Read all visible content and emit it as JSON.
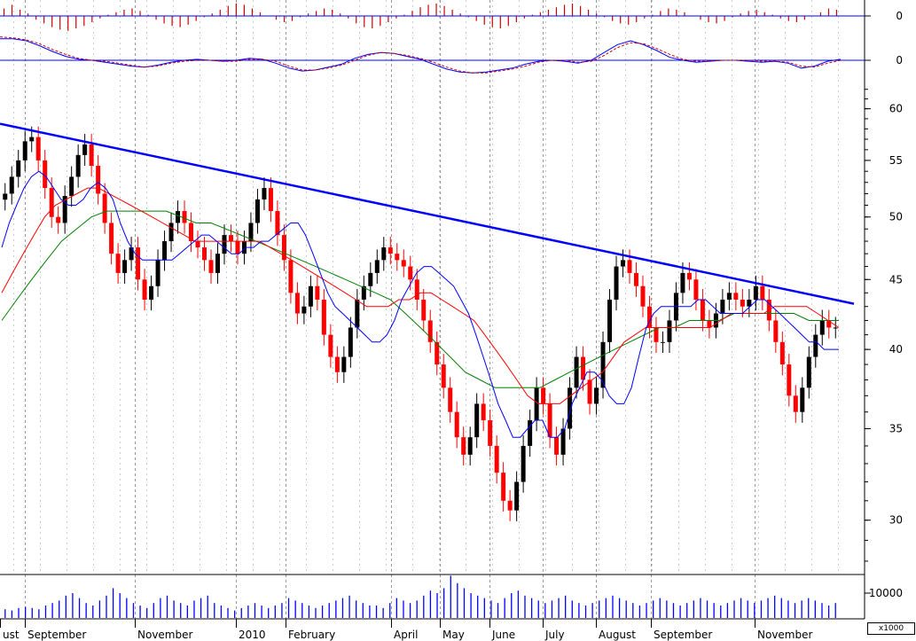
{
  "chart_data": [
    {
      "type": "bar",
      "panel": "oscillator-histogram",
      "y_tick_labels": [
        "0"
      ],
      "zero_line_color": "#0000ff",
      "bar_colors": {
        "positive": "#cc0000",
        "negative": "#cc0000"
      },
      "values": [
        0.6,
        0.9,
        0.5,
        0.2,
        -0.3,
        -0.6,
        -0.9,
        -1.1,
        -1.2,
        -1.0,
        -0.8,
        -0.5,
        -0.2,
        0.1,
        0.3,
        0.5,
        0.6,
        0.4,
        0.1,
        -0.3,
        -0.6,
        -0.8,
        -0.9,
        -0.7,
        -0.4,
        -0.1,
        0.2,
        0.5,
        0.8,
        1.0,
        0.9,
        0.6,
        0.3,
        0.0,
        -0.3,
        -0.5,
        -0.4,
        -0.1,
        0.2,
        0.4,
        0.6,
        0.5,
        0.2,
        -0.2,
        -0.6,
        -0.9,
        -1.0,
        -0.8,
        -0.5,
        -0.2,
        0.1,
        0.4,
        0.7,
        0.9,
        1.0,
        0.8,
        0.5,
        0.2,
        -0.1,
        -0.4,
        -0.7,
        -0.9,
        -1.0,
        -0.8,
        -0.5,
        -0.2,
        0.1,
        0.3,
        0.5,
        0.7,
        0.9,
        1.0,
        0.8,
        0.5,
        0.2,
        -0.1,
        -0.4,
        -0.6,
        -0.7,
        -0.5,
        -0.2,
        0.1,
        0.4,
        0.6,
        0.5,
        0.3,
        0.0,
        -0.3,
        -0.5,
        -0.6,
        -0.4,
        -0.1,
        0.2,
        0.4,
        0.5,
        0.3,
        0.1,
        -0.2,
        -0.4,
        -0.5,
        -0.3,
        0.0,
        0.3,
        0.6,
        0.5
      ]
    },
    {
      "type": "line",
      "panel": "oscillator",
      "y_tick_labels": [
        "0"
      ],
      "series": [
        {
          "color": "#0000ff",
          "style": "solid",
          "values": [
            2.2,
            2.2,
            2.0,
            1.5,
            0.9,
            0.4,
            0.1,
            0.0,
            -0.2,
            -0.4,
            -0.6,
            -0.7,
            -0.5,
            -0.2,
            0.0,
            0.1,
            0.0,
            -0.1,
            0.0,
            0.2,
            0.1,
            -0.3,
            -0.8,
            -1.1,
            -1.0,
            -0.7,
            -0.4,
            0.2,
            0.6,
            0.8,
            0.7,
            0.4,
            0.1,
            -0.4,
            -0.9,
            -1.2,
            -1.3,
            -1.2,
            -1.0,
            -0.8,
            -0.4,
            -0.1,
            0.0,
            -0.1,
            -0.3,
            0.0,
            0.8,
            1.6,
            2.0,
            1.6,
            1.0,
            0.3,
            0.0,
            -0.2,
            -0.1,
            0.0,
            0.0,
            -0.1,
            -0.2,
            -0.1,
            -0.3,
            -0.8,
            -0.6,
            -0.1,
            0.1
          ]
        },
        {
          "color": "#cc0000",
          "style": "dashed",
          "values": [
            2.4,
            2.3,
            2.1,
            1.7,
            1.1,
            0.6,
            0.2,
            0.0,
            -0.1,
            -0.3,
            -0.5,
            -0.7,
            -0.6,
            -0.3,
            -0.1,
            0.0,
            0.0,
            -0.1,
            -0.1,
            0.1,
            0.1,
            -0.1,
            -0.6,
            -1.0,
            -1.0,
            -0.8,
            -0.5,
            0.0,
            0.5,
            0.8,
            0.7,
            0.5,
            0.2,
            -0.2,
            -0.7,
            -1.1,
            -1.3,
            -1.3,
            -1.1,
            -0.9,
            -0.6,
            -0.2,
            0.0,
            0.0,
            -0.2,
            -0.1,
            0.5,
            1.3,
            1.8,
            1.7,
            1.2,
            0.6,
            0.1,
            -0.1,
            -0.1,
            0.0,
            0.0,
            0.0,
            -0.1,
            -0.1,
            -0.2,
            -0.6,
            -0.7,
            -0.3,
            0.0
          ]
        }
      ]
    },
    {
      "type": "candlestick",
      "panel": "price",
      "scale": "log",
      "y_tick_labels": [
        "30",
        "35",
        "40",
        "45",
        "50",
        "55",
        "60"
      ],
      "ylim": [
        27.5,
        63
      ],
      "candle_colors": {
        "up": "#000000",
        "down": "#ff0000"
      },
      "close": [
        52.0,
        53.5,
        55.0,
        56.8,
        57.2,
        55.0,
        52.5,
        50.0,
        49.5,
        51.8,
        53.5,
        55.5,
        56.5,
        54.5,
        52.0,
        49.5,
        47.0,
        45.5,
        46.5,
        47.5,
        45.0,
        43.5,
        44.5,
        46.5,
        48.0,
        49.5,
        50.5,
        49.5,
        48.0,
        47.5,
        46.5,
        45.5,
        47.0,
        48.5,
        48.0,
        47.0,
        48.0,
        49.5,
        51.5,
        52.5,
        50.5,
        48.5,
        46.5,
        44.0,
        42.5,
        43.0,
        44.5,
        43.5,
        41.0,
        39.5,
        38.5,
        39.5,
        41.5,
        43.5,
        44.5,
        45.5,
        46.5,
        47.5,
        47.0,
        46.5,
        46.0,
        45.0,
        43.5,
        42.0,
        40.5,
        39.0,
        37.5,
        36.0,
        34.5,
        33.5,
        34.5,
        36.5,
        35.5,
        34.0,
        32.5,
        31.0,
        30.5,
        32.0,
        34.0,
        35.5,
        37.5,
        36.5,
        34.5,
        33.5,
        35.0,
        37.5,
        39.5,
        38.0,
        36.5,
        37.5,
        40.5,
        43.5,
        46.0,
        46.5,
        45.5,
        44.5,
        43.0,
        41.5,
        40.5,
        40.5,
        42.0,
        44.0,
        45.5,
        45.0,
        43.5,
        42.0,
        41.5,
        42.5,
        43.5,
        44.0,
        43.5,
        43.0,
        43.5,
        44.5,
        43.5,
        42.0,
        40.5,
        39.0,
        37.0,
        36.0,
        37.5,
        39.5,
        41.0,
        42.0,
        41.5,
        41.5
      ],
      "sma_fast": {
        "color": "#0000ff",
        "values": [
          47.5,
          49.5,
          51.0,
          52.5,
          53.5,
          54.0,
          53.5,
          52.5,
          51.5,
          51.0,
          51.0,
          51.5,
          52.5,
          53.0,
          52.5,
          51.5,
          49.5,
          48.0,
          47.0,
          46.5,
          46.5,
          46.5,
          46.5,
          46.5,
          47.0,
          47.5,
          48.0,
          48.5,
          48.5,
          48.0,
          47.5,
          47.0,
          47.0,
          47.5,
          47.5,
          48.0,
          48.0,
          48.5,
          49.0,
          49.5,
          49.5,
          48.5,
          47.0,
          45.5,
          44.0,
          43.0,
          42.5,
          42.0,
          41.5,
          41.0,
          40.5,
          40.5,
          41.0,
          42.0,
          43.5,
          44.5,
          45.5,
          46.0,
          46.0,
          45.5,
          45.0,
          44.5,
          43.5,
          42.5,
          41.0,
          39.5,
          38.0,
          36.5,
          35.5,
          34.5,
          34.5,
          35.0,
          35.5,
          35.5,
          34.5,
          34.5,
          35.0,
          36.5,
          37.5,
          38.5,
          38.5,
          38.0,
          37.0,
          36.5,
          36.5,
          37.5,
          39.5,
          41.5,
          42.5,
          43.0,
          43.0,
          43.0,
          43.0,
          43.0,
          43.5,
          43.5,
          43.0,
          42.5,
          42.5,
          42.5,
          42.5,
          43.0,
          43.5,
          43.5,
          43.0,
          42.5,
          42.0,
          41.5,
          41.0,
          40.5,
          40.5,
          40.0,
          40.0,
          40.0
        ]
      },
      "sma_mid": {
        "color": "#ff0000",
        "values": [
          44.0,
          45.5,
          47.0,
          48.5,
          50.0,
          51.0,
          51.5,
          52.0,
          52.5,
          52.5,
          52.0,
          51.5,
          51.0,
          50.5,
          50.0,
          49.5,
          49.0,
          48.5,
          48.0,
          48.0,
          48.0,
          48.0,
          48.0,
          48.0,
          48.0,
          47.5,
          47.0,
          46.5,
          46.0,
          45.5,
          45.0,
          44.5,
          44.0,
          43.5,
          43.0,
          43.0,
          43.0,
          43.5,
          43.5,
          44.0,
          44.0,
          43.5,
          43.0,
          42.5,
          42.0,
          41.0,
          40.0,
          39.0,
          38.0,
          37.0,
          36.5,
          36.5,
          36.5,
          37.0,
          37.5,
          38.0,
          38.5,
          39.5,
          40.5,
          41.0,
          41.5,
          41.5,
          41.5,
          41.5,
          41.5,
          41.5,
          41.5,
          42.0,
          42.5,
          42.5,
          42.5,
          42.5,
          43.0,
          43.0,
          43.0,
          43.0,
          42.5,
          42.0,
          41.5
        ]
      },
      "sma_slow": {
        "color": "#008000",
        "values": [
          42.0,
          43.5,
          45.0,
          46.5,
          48.0,
          49.0,
          50.0,
          50.5,
          50.5,
          50.5,
          50.5,
          50.5,
          50.0,
          49.5,
          49.5,
          49.0,
          48.5,
          48.0,
          47.5,
          47.0,
          46.5,
          46.0,
          45.5,
          45.0,
          44.5,
          44.0,
          43.5,
          42.5,
          41.5,
          40.5,
          39.5,
          38.5,
          38.0,
          37.5,
          37.5,
          37.5,
          37.5,
          38.0,
          38.5,
          39.0,
          39.5,
          40.0,
          40.5,
          41.0,
          41.5,
          41.5,
          42.0,
          42.0,
          42.0,
          42.5,
          42.5,
          42.5,
          42.5,
          42.5,
          42.0,
          42.0,
          42.0
        ]
      },
      "trendline": {
        "color": "#0000ff",
        "from": 58.5,
        "to": 43.2
      }
    },
    {
      "type": "bar",
      "panel": "volume",
      "y_tick_labels": [
        "10000"
      ],
      "unit_label": "x1000",
      "bar_color": "#0000ff",
      "values": [
        3500,
        3000,
        4000,
        4500,
        4000,
        3500,
        5000,
        6000,
        7000,
        9000,
        10000,
        8000,
        6000,
        5000,
        7000,
        9000,
        12000,
        10000,
        8000,
        6000,
        5000,
        4000,
        6000,
        8000,
        9000,
        7000,
        6000,
        5000,
        7000,
        8000,
        9000,
        6000,
        5000,
        4000,
        3000,
        4000,
        5000,
        6000,
        5000,
        4000,
        5000,
        6000,
        8000,
        7000,
        6000,
        5000,
        4000,
        5000,
        6000,
        7000,
        8000,
        9000,
        7000,
        6000,
        5000,
        5000,
        4000,
        6000,
        8000,
        7000,
        6000,
        7000,
        9000,
        11000,
        10000,
        12000,
        17000,
        14000,
        12000,
        10000,
        9000,
        8000,
        7000,
        6000,
        8000,
        10000,
        11000,
        9000,
        8000,
        7000,
        6000,
        7000,
        8000,
        9000,
        7000,
        6000,
        5000,
        6000,
        7000,
        8000,
        9000,
        8000,
        7000,
        6000,
        5000,
        6000,
        7000,
        8000,
        7000,
        6000,
        5000,
        6000,
        7000,
        8000,
        7000,
        6000,
        5000,
        6000,
        7000,
        8000,
        7000,
        6000,
        7000,
        8000,
        9000,
        8000,
        7000,
        6000,
        7000,
        8000,
        7000,
        6000,
        5000,
        6000
      ]
    }
  ],
  "x_axis": {
    "month_labels": [
      "ust",
      "September",
      "November",
      "2010",
      "February",
      "April",
      "May",
      "June",
      "July",
      "August",
      "September",
      "November"
    ]
  }
}
